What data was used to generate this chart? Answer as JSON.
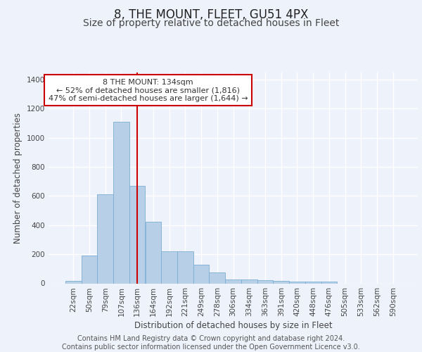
{
  "title": "8, THE MOUNT, FLEET, GU51 4PX",
  "subtitle": "Size of property relative to detached houses in Fleet",
  "xlabel": "Distribution of detached houses by size in Fleet",
  "ylabel": "Number of detached properties",
  "categories": [
    "22sqm",
    "50sqm",
    "79sqm",
    "107sqm",
    "136sqm",
    "164sqm",
    "192sqm",
    "221sqm",
    "249sqm",
    "278sqm",
    "306sqm",
    "334sqm",
    "363sqm",
    "391sqm",
    "420sqm",
    "448sqm",
    "476sqm",
    "505sqm",
    "533sqm",
    "562sqm",
    "590sqm"
  ],
  "values": [
    18,
    190,
    612,
    1110,
    670,
    425,
    220,
    220,
    130,
    75,
    28,
    28,
    22,
    15,
    12,
    10,
    10,
    0,
    0,
    0,
    0
  ],
  "bar_color": "#b8cfe8",
  "bar_edge_color": "#7aadd4",
  "background_color": "#eef2fb",
  "grid_color": "#ffffff",
  "vline_x_index": 4,
  "vline_color": "#cc0000",
  "annotation_text": "8 THE MOUNT: 134sqm\n← 52% of detached houses are smaller (1,816)\n47% of semi-detached houses are larger (1,644) →",
  "annotation_box_color": "#ffffff",
  "annotation_box_edge_color": "#cc0000",
  "ylim": [
    0,
    1450
  ],
  "yticks": [
    0,
    200,
    400,
    600,
    800,
    1000,
    1200,
    1400
  ],
  "footer_text": "Contains HM Land Registry data © Crown copyright and database right 2024.\nContains public sector information licensed under the Open Government Licence v3.0.",
  "title_fontsize": 12,
  "subtitle_fontsize": 10,
  "axis_label_fontsize": 8.5,
  "tick_fontsize": 7.5,
  "footer_fontsize": 7.0,
  "annotation_fontsize": 8.0
}
